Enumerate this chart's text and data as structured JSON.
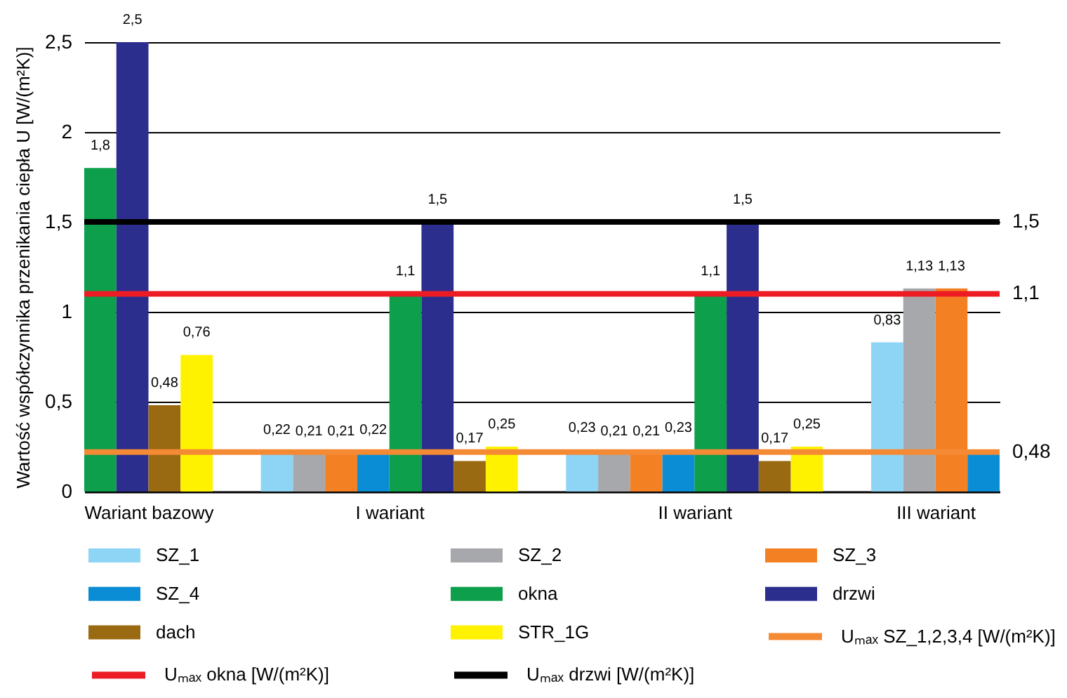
{
  "chart_data": {
    "type": "bar",
    "ylabel": "Wartość współczynnika przenikania ciepła U [W/(m²K)]",
    "categories": [
      "Wariant bazowy",
      "I wariant",
      "II wariant",
      "III wariant"
    ],
    "series": [
      {
        "name": "SZ_1",
        "color": "#8ed4f5",
        "values": [
          null,
          0.22,
          0.23,
          0.83
        ],
        "value_labels": [
          null,
          "0,22",
          "0,23",
          "0,83"
        ]
      },
      {
        "name": "SZ_2",
        "color": "#a7a8ab",
        "values": [
          null,
          0.21,
          0.21,
          1.13
        ],
        "value_labels": [
          null,
          "0,21",
          "0,21",
          "1,13"
        ]
      },
      {
        "name": "SZ_3",
        "color": "#f48024",
        "values": [
          null,
          0.21,
          0.21,
          1.13
        ],
        "value_labels": [
          null,
          "0,21",
          "0,21",
          "1,13"
        ]
      },
      {
        "name": "SZ_4",
        "color": "#0b8dd5",
        "values": [
          null,
          0.22,
          0.23,
          0.22
        ],
        "value_labels": [
          null,
          "0,22",
          "0,23",
          null
        ]
      },
      {
        "name": "okna",
        "color": "#0d9f4c",
        "values": [
          1.8,
          1.1,
          1.1,
          null
        ],
        "value_labels": [
          "1,8",
          "1,1",
          "1,1",
          null
        ]
      },
      {
        "name": "drzwi",
        "color": "#2c2e8e",
        "values": [
          2.5,
          1.5,
          1.5,
          null
        ],
        "value_labels": [
          "2,5",
          "1,5",
          "1,5",
          null
        ]
      },
      {
        "name": "dach",
        "color": "#9a6a12",
        "values": [
          0.48,
          0.17,
          0.17,
          null
        ],
        "value_labels": [
          "0,48",
          "0,17",
          "0,17",
          null
        ]
      },
      {
        "name": "STR_1G",
        "color": "#fff200",
        "values": [
          0.76,
          0.25,
          0.25,
          null
        ],
        "value_labels": [
          "0,76",
          "0,25",
          "0,25",
          null
        ]
      }
    ],
    "ylim": [
      0,
      2.5
    ],
    "yticks": [
      0,
      {
        "value": 0.5,
        "label": "0,5"
      },
      1,
      {
        "value": 1.5,
        "label": "1,5"
      },
      2,
      {
        "value": 2.5,
        "label": "2,5"
      }
    ],
    "grid": "y",
    "legend": "bottom",
    "ref_lines": [
      {
        "axis": "y",
        "value": 0.22,
        "label": "Uₘₐₓ SZ_1,2,3,4 [W/(m²K)]",
        "color": "#f58a35"
      },
      {
        "axis": "y",
        "value": 1.1,
        "label": "Uₘₐₓ okna [W/(m²K)]",
        "color": "#ed1c24"
      },
      {
        "axis": "y",
        "value": 1.5,
        "label": "Uₘₐₓ drzwi [W/(m²K)]",
        "color": "#000000"
      }
    ],
    "annotations": [
      "0,48",
      "1,1",
      "1,5"
    ]
  }
}
